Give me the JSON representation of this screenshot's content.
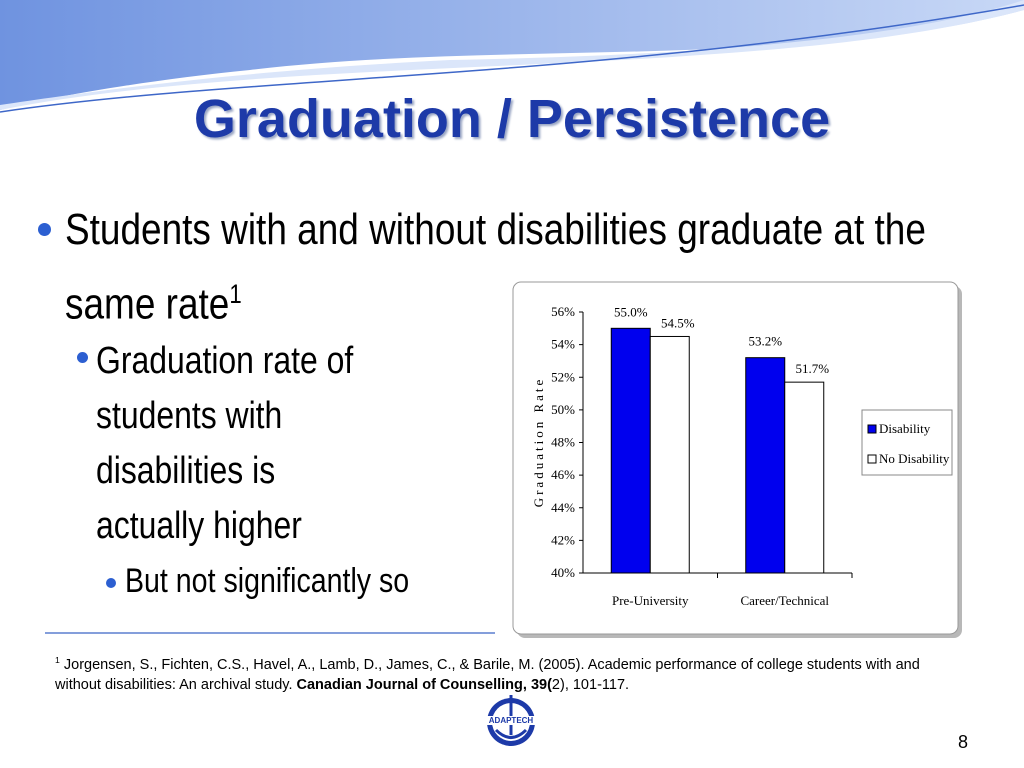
{
  "slide": {
    "title": "Graduation / Persistence",
    "bullet": {
      "text": "Students with and without disabilities graduate at the same rate",
      "sup": "1"
    },
    "sub_bullet": "Graduation rate of students with disabilities is actually higher",
    "sub_sub_bullet": "But not significantly so",
    "footnote": {
      "sup": "1",
      "text": "Jorgensen, S., Fichten, C.S., Havel, A., Lamb, D., James, C., & Barile, M. (2005). Academic performance of college students with and without disabilities: An archival study. ",
      "journal": "Canadian Journal of Counselling, 39(",
      "rest": "2), 101-117."
    },
    "logo": "ADAPTECH",
    "page_number": "8"
  },
  "chart_data": {
    "type": "bar",
    "ylabel": "Graduation Rate",
    "categories": [
      "Pre-University",
      "Career/Technical"
    ],
    "series": [
      {
        "name": "Disability",
        "color": "#0000ee",
        "values": [
          55.0,
          53.2
        ],
        "value_labels": [
          "55.0%",
          "53.2%"
        ]
      },
      {
        "name": "No Disability",
        "color": "#ffffff",
        "values": [
          54.5,
          51.7
        ],
        "value_labels": [
          "54.5%",
          "51.7%"
        ]
      }
    ],
    "ylim": [
      40,
      56
    ],
    "yticks": [
      {
        "value": 40,
        "label": "40%"
      },
      {
        "value": 42,
        "label": "42%"
      },
      {
        "value": 44,
        "label": "44%"
      },
      {
        "value": 46,
        "label": "46%"
      },
      {
        "value": 48,
        "label": "48%"
      },
      {
        "value": 50,
        "label": "50%"
      },
      {
        "value": 52,
        "label": "52%"
      },
      {
        "value": 54,
        "label": "54%"
      },
      {
        "value": 56,
        "label": "56%"
      }
    ],
    "legend": "right"
  }
}
